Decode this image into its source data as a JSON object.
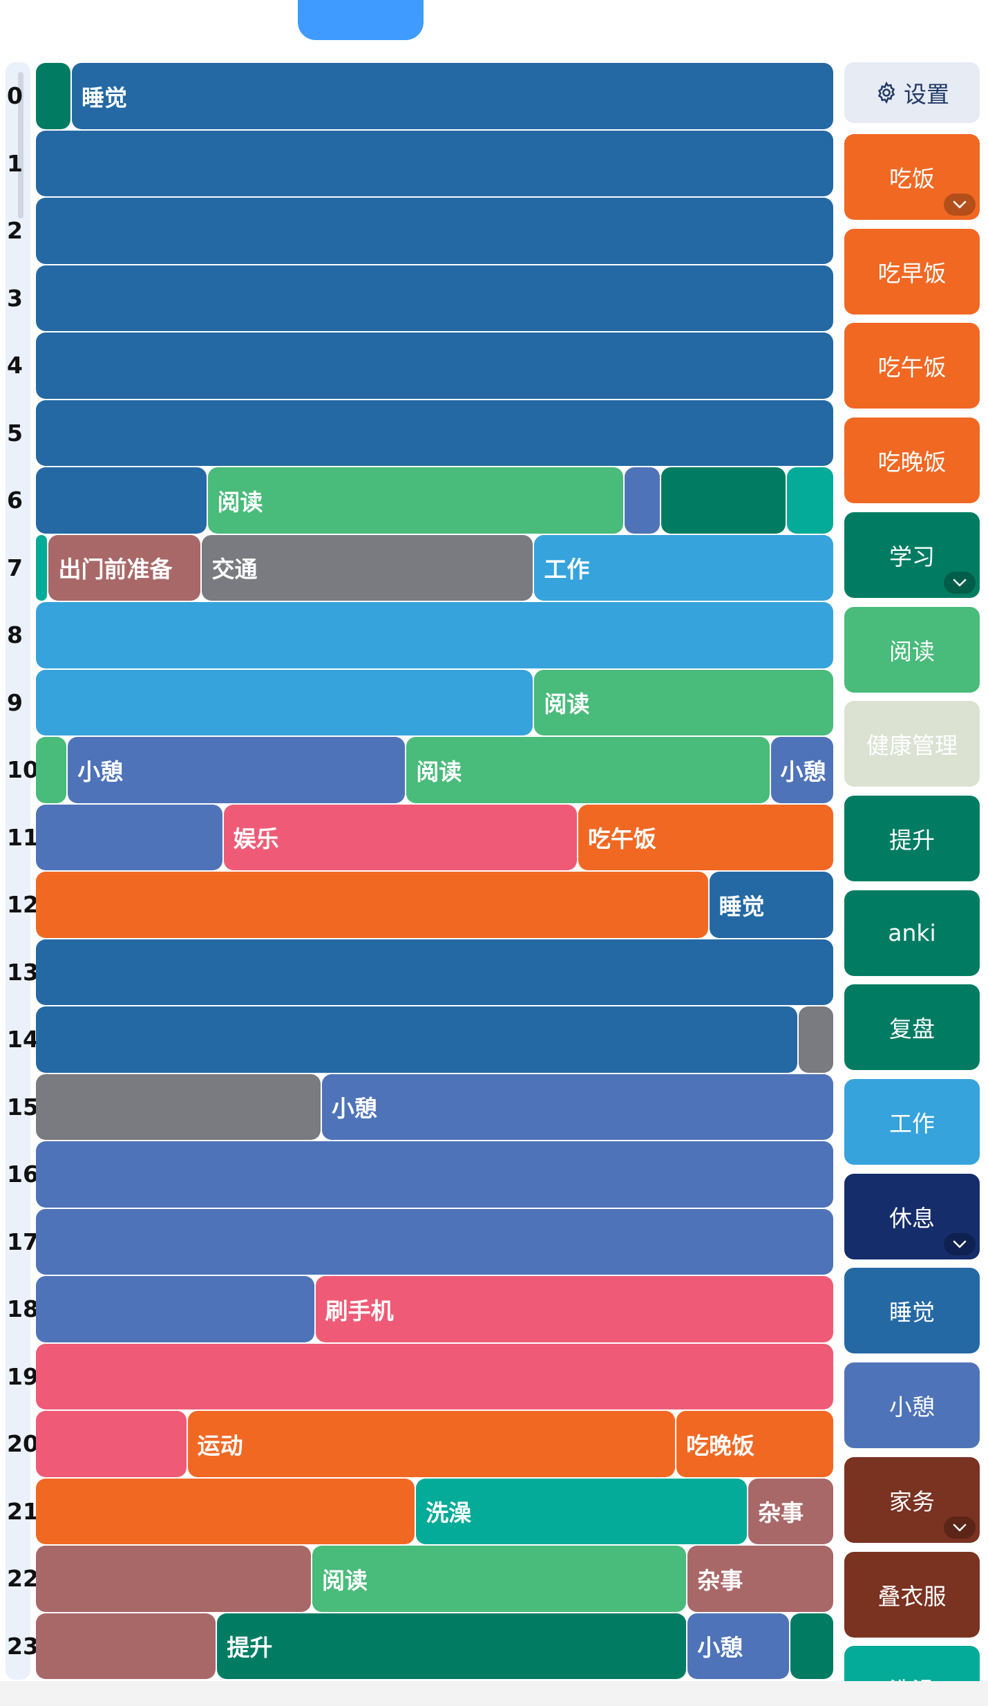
{
  "colors": {
    "sleep": "#2469a4",
    "dark_teal": "#017c62",
    "reading": "#49bb7a",
    "rest": "#4e73b8",
    "teal": "#03ab98",
    "prep": "#a96868",
    "transit": "#797b80",
    "work": "#36a3dc",
    "entertainment": "#ef5b76",
    "meal": "#f16823",
    "navy": "#152d6b",
    "chores": "#7a3221",
    "health": "#dbe2d2",
    "settings": "#e6ebf4"
  },
  "hours": [
    "0",
    "1",
    "2",
    "3",
    "4",
    "5",
    "6",
    "7",
    "8",
    "9",
    "10",
    "11",
    "12",
    "13",
    "14",
    "15",
    "16",
    "17",
    "18",
    "19",
    "20",
    "21",
    "22",
    "23"
  ],
  "blocks": [
    {
      "row": 0,
      "start": 0,
      "end": 0.045,
      "color": "dark_teal",
      "label": ""
    },
    {
      "row": 0,
      "start": 0.045,
      "end": 1,
      "color": "sleep",
      "label": "睡觉"
    },
    {
      "row": 1,
      "start": 0,
      "end": 1,
      "color": "sleep",
      "label": ""
    },
    {
      "row": 2,
      "start": 0,
      "end": 1,
      "color": "sleep",
      "label": ""
    },
    {
      "row": 3,
      "start": 0,
      "end": 1,
      "color": "sleep",
      "label": ""
    },
    {
      "row": 4,
      "start": 0,
      "end": 1,
      "color": "sleep",
      "label": ""
    },
    {
      "row": 5,
      "start": 0,
      "end": 1,
      "color": "sleep",
      "label": ""
    },
    {
      "row": 6,
      "start": 0,
      "end": 0.215,
      "color": "sleep",
      "label": ""
    },
    {
      "row": 6,
      "start": 0.215,
      "end": 0.737,
      "color": "reading",
      "label": "阅读"
    },
    {
      "row": 6,
      "start": 0.737,
      "end": 0.783,
      "color": "rest",
      "label": ""
    },
    {
      "row": 6,
      "start": 0.783,
      "end": 0.94,
      "color": "dark_teal",
      "label": ""
    },
    {
      "row": 6,
      "start": 0.94,
      "end": 1,
      "color": "teal",
      "label": ""
    },
    {
      "row": 7,
      "start": 0,
      "end": 0.016,
      "color": "teal",
      "label": ""
    },
    {
      "row": 7,
      "start": 0.016,
      "end": 0.208,
      "color": "prep",
      "label": "出门前准备"
    },
    {
      "row": 7,
      "start": 0.208,
      "end": 0.624,
      "color": "transit",
      "label": "交通"
    },
    {
      "row": 7,
      "start": 0.624,
      "end": 1,
      "color": "work",
      "label": "工作"
    },
    {
      "row": 8,
      "start": 0,
      "end": 1,
      "color": "work",
      "label": ""
    },
    {
      "row": 9,
      "start": 0,
      "end": 0.624,
      "color": "work",
      "label": ""
    },
    {
      "row": 9,
      "start": 0.624,
      "end": 1,
      "color": "reading",
      "label": "阅读"
    },
    {
      "row": 10,
      "start": 0,
      "end": 0.04,
      "color": "reading",
      "label": ""
    },
    {
      "row": 10,
      "start": 0.04,
      "end": 0.464,
      "color": "rest",
      "label": "小憩"
    },
    {
      "row": 10,
      "start": 0.464,
      "end": 0.92,
      "color": "reading",
      "label": "阅读"
    },
    {
      "row": 10,
      "start": 0.92,
      "end": 1,
      "color": "rest",
      "label": "小憩"
    },
    {
      "row": 11,
      "start": 0,
      "end": 0.235,
      "color": "rest",
      "label": ""
    },
    {
      "row": 11,
      "start": 0.235,
      "end": 0.679,
      "color": "entertainment",
      "label": "娱乐"
    },
    {
      "row": 11,
      "start": 0.679,
      "end": 1,
      "color": "meal",
      "label": "吃午饭"
    },
    {
      "row": 12,
      "start": 0,
      "end": 0.843,
      "color": "meal",
      "label": ""
    },
    {
      "row": 12,
      "start": 0.843,
      "end": 1,
      "color": "sleep",
      "label": "睡觉"
    },
    {
      "row": 13,
      "start": 0,
      "end": 1,
      "color": "sleep",
      "label": ""
    },
    {
      "row": 14,
      "start": 0,
      "end": 0.955,
      "color": "sleep",
      "label": ""
    },
    {
      "row": 14,
      "start": 0.955,
      "end": 1,
      "color": "transit",
      "label": ""
    },
    {
      "row": 15,
      "start": 0,
      "end": 0.358,
      "color": "transit",
      "label": ""
    },
    {
      "row": 15,
      "start": 0.358,
      "end": 1,
      "color": "rest",
      "label": "小憩"
    },
    {
      "row": 16,
      "start": 0,
      "end": 1,
      "color": "rest",
      "label": ""
    },
    {
      "row": 17,
      "start": 0,
      "end": 1,
      "color": "rest",
      "label": ""
    },
    {
      "row": 18,
      "start": 0,
      "end": 0.35,
      "color": "rest",
      "label": ""
    },
    {
      "row": 18,
      "start": 0.35,
      "end": 1,
      "color": "entertainment",
      "label": "刷手机"
    },
    {
      "row": 19,
      "start": 0,
      "end": 1,
      "color": "entertainment",
      "label": ""
    },
    {
      "row": 20,
      "start": 0,
      "end": 0.19,
      "color": "entertainment",
      "label": ""
    },
    {
      "row": 20,
      "start": 0.19,
      "end": 0.802,
      "color": "meal",
      "label": "运动"
    },
    {
      "row": 20,
      "start": 0.802,
      "end": 1,
      "color": "meal",
      "label": "吃晚饭"
    },
    {
      "row": 21,
      "start": 0,
      "end": 0.476,
      "color": "meal",
      "label": ""
    },
    {
      "row": 21,
      "start": 0.476,
      "end": 0.892,
      "color": "teal",
      "label": "洗澡"
    },
    {
      "row": 21,
      "start": 0.892,
      "end": 1,
      "color": "prep",
      "label": "杂事"
    },
    {
      "row": 22,
      "start": 0,
      "end": 0.346,
      "color": "prep",
      "label": ""
    },
    {
      "row": 22,
      "start": 0.346,
      "end": 0.816,
      "color": "reading",
      "label": "阅读"
    },
    {
      "row": 22,
      "start": 0.816,
      "end": 1,
      "color": "prep",
      "label": "杂事"
    },
    {
      "row": 23,
      "start": 0,
      "end": 0.227,
      "color": "prep",
      "label": ""
    },
    {
      "row": 23,
      "start": 0.227,
      "end": 0.816,
      "color": "dark_teal",
      "label": "提升"
    },
    {
      "row": 23,
      "start": 0.816,
      "end": 0.945,
      "color": "rest",
      "label": "小憩"
    },
    {
      "row": 23,
      "start": 0.945,
      "end": 1,
      "color": "dark_teal",
      "label": ""
    }
  ],
  "sidebar": {
    "settings_label": "设置",
    "settings_icon": "gear-icon",
    "items": [
      {
        "label": "吃饭",
        "color": "meal",
        "expandable": true
      },
      {
        "label": "吃早饭",
        "color": "meal",
        "expandable": false
      },
      {
        "label": "吃午饭",
        "color": "meal",
        "expandable": false
      },
      {
        "label": "吃晚饭",
        "color": "meal",
        "expandable": false
      },
      {
        "label": "学习",
        "color": "dark_teal",
        "expandable": true
      },
      {
        "label": "阅读",
        "color": "reading",
        "expandable": false
      },
      {
        "label": "健康管理",
        "color": "health",
        "expandable": false
      },
      {
        "label": "提升",
        "color": "dark_teal",
        "expandable": false
      },
      {
        "label": "anki",
        "color": "dark_teal",
        "expandable": false
      },
      {
        "label": "复盘",
        "color": "dark_teal",
        "expandable": false
      },
      {
        "label": "工作",
        "color": "work",
        "expandable": false
      },
      {
        "label": "休息",
        "color": "navy",
        "expandable": true
      },
      {
        "label": "睡觉",
        "color": "sleep",
        "expandable": false
      },
      {
        "label": "小憩",
        "color": "rest",
        "expandable": false
      },
      {
        "label": "家务",
        "color": "chores",
        "expandable": true
      },
      {
        "label": "叠衣服",
        "color": "chores",
        "expandable": false
      },
      {
        "label": "洗澡",
        "color": "teal",
        "expandable": false
      }
    ]
  }
}
